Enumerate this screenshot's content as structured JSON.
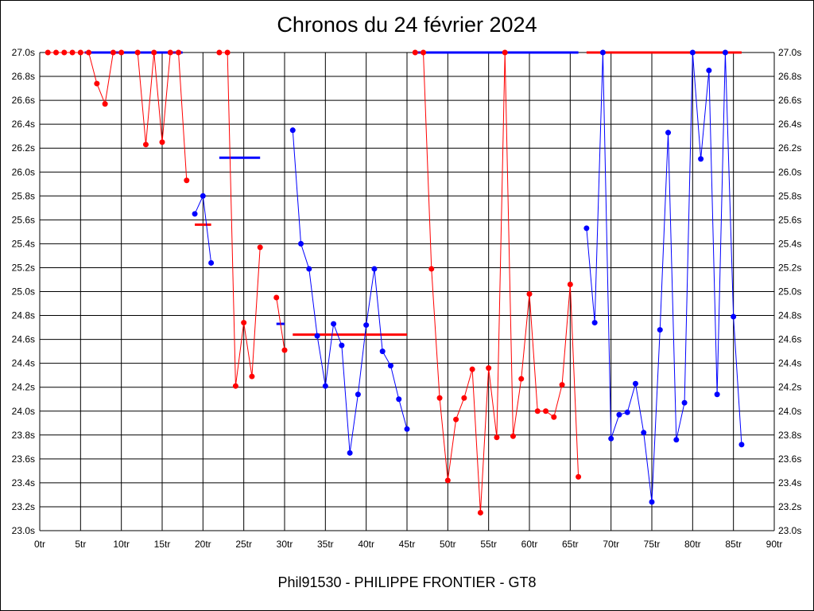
{
  "title": "Chronos du 24 février 2024",
  "footer": "Phil91530 - PHILIPPE FRONTIER - GT8",
  "chart_data": {
    "type": "line",
    "title": "Chronos du 24 février 2024",
    "xlabel": "",
    "ylabel": "",
    "xlim": [
      0,
      90
    ],
    "ylim": [
      23.0,
      27.0
    ],
    "grid": true,
    "x_ticks": [
      "0tr",
      "5tr",
      "10tr",
      "15tr",
      "20tr",
      "25tr",
      "30tr",
      "35tr",
      "40tr",
      "45tr",
      "50tr",
      "55tr",
      "60tr",
      "65tr",
      "70tr",
      "75tr",
      "80tr",
      "85tr",
      "90tr"
    ],
    "y_ticks": [
      "23.0s",
      "23.2s",
      "23.4s",
      "23.6s",
      "23.8s",
      "24.0s",
      "24.2s",
      "24.4s",
      "24.6s",
      "24.8s",
      "25.0s",
      "25.2s",
      "25.4s",
      "25.6s",
      "25.8s",
      "26.0s",
      "26.2s",
      "26.4s",
      "26.6s",
      "26.8s",
      "27.0s"
    ],
    "colors": {
      "red": "#ff0000",
      "blue": "#0000ff"
    },
    "series": [
      {
        "color": "#ff0000",
        "points": [
          [
            1,
            27.0
          ],
          [
            2,
            27.0
          ],
          [
            3,
            27.0
          ],
          [
            4,
            27.0
          ],
          [
            5,
            27.0
          ],
          [
            6,
            27.0
          ],
          [
            7,
            26.74
          ],
          [
            8,
            26.57
          ],
          [
            9,
            27.0
          ],
          [
            10,
            27.0
          ]
        ]
      },
      {
        "color": "#ff0000",
        "points": [
          [
            12,
            27.0
          ],
          [
            13,
            26.23
          ],
          [
            14,
            27.0
          ],
          [
            15,
            26.25
          ],
          [
            16,
            27.0
          ],
          [
            17,
            27.0
          ],
          [
            18,
            25.93
          ]
        ]
      },
      {
        "color": "#0000ff",
        "points": [
          [
            19,
            25.65
          ],
          [
            20,
            25.8
          ],
          [
            21,
            25.24
          ]
        ]
      },
      {
        "color": "#ff0000",
        "points": [
          [
            22,
            27.0
          ],
          [
            23,
            27.0
          ],
          [
            24,
            24.21
          ],
          [
            25,
            24.74
          ],
          [
            26,
            24.29
          ],
          [
            27,
            25.37
          ]
        ]
      },
      {
        "color": "#ff0000",
        "points": [
          [
            29,
            24.95
          ],
          [
            30,
            24.51
          ]
        ]
      },
      {
        "color": "#0000ff",
        "points": [
          [
            31,
            26.35
          ],
          [
            32,
            25.4
          ],
          [
            33,
            25.19
          ],
          [
            34,
            24.63
          ],
          [
            35,
            24.21
          ],
          [
            36,
            24.73
          ],
          [
            37,
            24.55
          ],
          [
            38,
            23.65
          ],
          [
            39,
            24.14
          ],
          [
            40,
            24.72
          ],
          [
            41,
            25.19
          ],
          [
            42,
            24.5
          ],
          [
            43,
            24.38
          ],
          [
            44,
            24.1
          ],
          [
            45,
            23.85
          ]
        ]
      },
      {
        "color": "#ff0000",
        "points": [
          [
            46,
            27.0
          ],
          [
            47,
            27.0
          ],
          [
            48,
            25.19
          ],
          [
            49,
            24.11
          ],
          [
            50,
            23.42
          ],
          [
            51,
            23.93
          ],
          [
            52,
            24.11
          ],
          [
            53,
            24.35
          ],
          [
            54,
            23.15
          ],
          [
            55,
            24.36
          ],
          [
            56,
            23.78
          ],
          [
            57,
            27.0
          ],
          [
            58,
            23.79
          ],
          [
            59,
            24.27
          ],
          [
            60,
            24.98
          ],
          [
            61,
            24.0
          ],
          [
            62,
            24.0
          ],
          [
            63,
            23.95
          ],
          [
            64,
            24.22
          ],
          [
            65,
            25.06
          ],
          [
            66,
            23.45
          ]
        ]
      },
      {
        "color": "#0000ff",
        "points": [
          [
            67,
            25.53
          ],
          [
            68,
            24.74
          ],
          [
            69,
            27.0
          ],
          [
            70,
            23.77
          ],
          [
            71,
            23.97
          ],
          [
            72,
            23.99
          ],
          [
            73,
            24.23
          ],
          [
            74,
            23.82
          ],
          [
            75,
            23.24
          ],
          [
            76,
            24.68
          ],
          [
            77,
            26.33
          ],
          [
            78,
            23.76
          ],
          [
            79,
            24.07
          ],
          [
            80,
            27.0
          ],
          [
            81,
            26.11
          ],
          [
            82,
            26.85
          ],
          [
            83,
            24.14
          ],
          [
            84,
            27.0
          ],
          [
            85,
            24.79
          ],
          [
            86,
            23.72
          ]
        ]
      }
    ],
    "reference_lines": [
      {
        "color": "#0000ff",
        "x1": 5.5,
        "x2": 17.5,
        "y": 27.0
      },
      {
        "color": "#ff0000",
        "x1": 19,
        "x2": 21,
        "y": 25.56
      },
      {
        "color": "#0000ff",
        "x1": 22,
        "x2": 27,
        "y": 26.12
      },
      {
        "color": "#0000ff",
        "x1": 29,
        "x2": 30,
        "y": 24.73
      },
      {
        "color": "#ff0000",
        "x1": 31,
        "x2": 45,
        "y": 24.64
      },
      {
        "color": "#0000ff",
        "x1": 46,
        "x2": 66,
        "y": 27.0
      },
      {
        "color": "#ff0000",
        "x1": 67,
        "x2": 86,
        "y": 27.0
      }
    ]
  }
}
